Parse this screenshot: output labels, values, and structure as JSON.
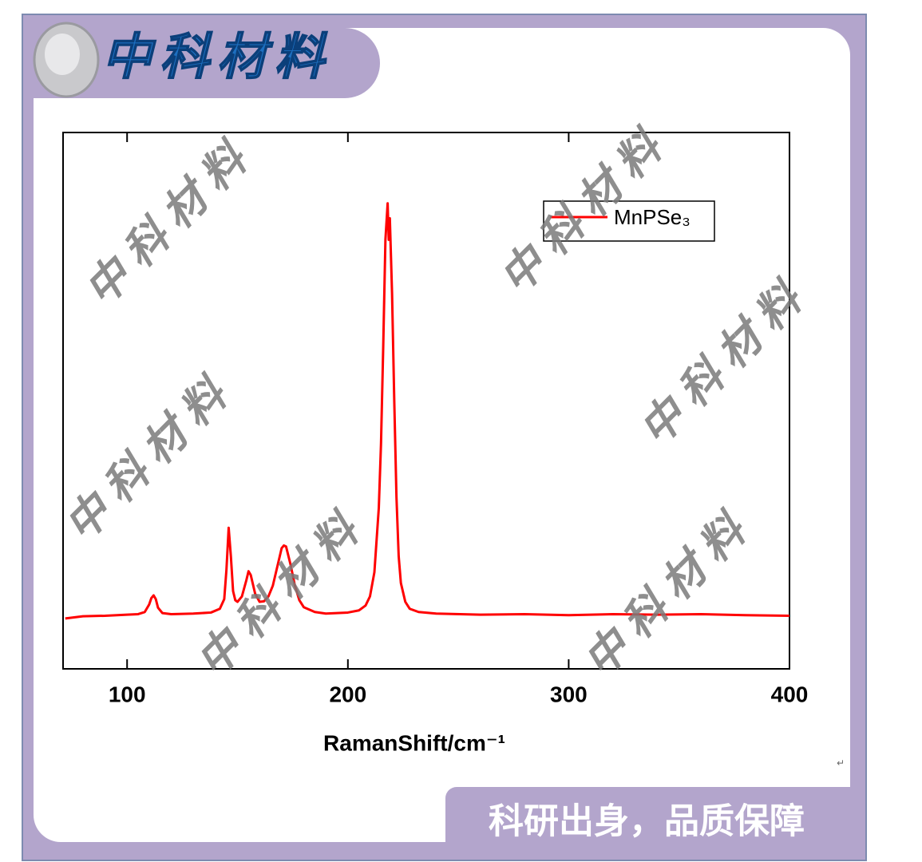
{
  "header": {
    "brand": "中科材料",
    "slogan": "科研出身，品质保障"
  },
  "watermark": "中科材料",
  "return_mark": "↵",
  "chart_data": {
    "type": "line",
    "x_label": "RamanShift/cm⁻¹",
    "x": [
      72,
      80,
      90,
      100,
      105,
      108,
      110,
      111,
      112,
      113,
      114,
      116,
      120,
      130,
      138,
      142,
      144,
      145,
      146,
      147,
      148,
      149,
      150,
      152,
      154,
      155,
      156,
      158,
      160,
      162,
      164,
      166,
      168,
      170,
      171,
      172,
      174,
      176,
      178,
      180,
      185,
      190,
      200,
      205,
      208,
      210,
      212,
      214,
      215,
      216,
      217,
      218,
      218.5,
      219,
      220,
      221,
      222,
      223,
      224,
      226,
      228,
      232,
      240,
      260,
      280,
      300,
      320,
      340,
      360,
      380,
      400
    ],
    "series": [
      {
        "name": "MnPSe₃",
        "color": "#ff0000",
        "values": [
          9.4,
          9.8,
          9.9,
          10.1,
          10.2,
          10.6,
          12.0,
          13.2,
          13.7,
          13.0,
          11.4,
          10.4,
          10.2,
          10.3,
          10.5,
          11.2,
          13.0,
          18.5,
          26.3,
          21.0,
          14.5,
          12.8,
          12.5,
          13.5,
          16.5,
          18.2,
          17.5,
          14.0,
          12.5,
          12.6,
          13.5,
          15.5,
          19.0,
          22.5,
          23.0,
          22.8,
          19.5,
          15.5,
          12.8,
          11.5,
          10.6,
          10.3,
          10.5,
          10.9,
          11.8,
          13.5,
          18,
          30,
          42,
          60,
          80,
          86.8,
          80,
          84,
          70,
          50,
          32,
          21,
          16,
          12.5,
          11.2,
          10.6,
          10.3,
          10.1,
          10.2,
          10.0,
          10.2,
          10.1,
          10.2,
          10.0,
          9.9
        ]
      }
    ],
    "xlim": [
      71,
      400
    ],
    "xticks": [
      100,
      200,
      300,
      400
    ],
    "ylim": [
      0,
      100
    ],
    "legend": "upper-right"
  }
}
